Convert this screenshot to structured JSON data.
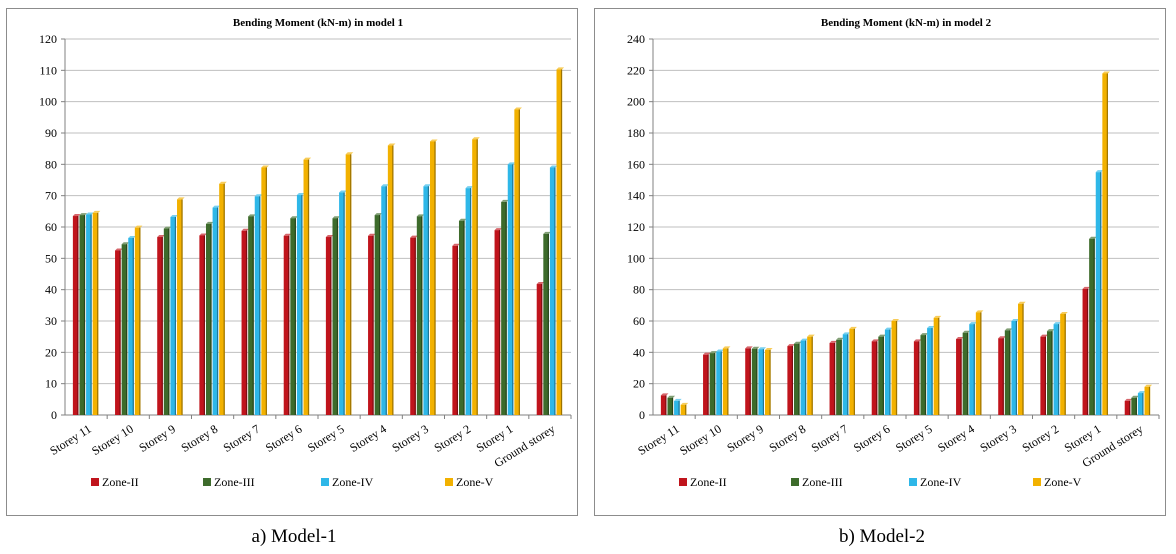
{
  "panels": [
    {
      "caption": "a) Model-1",
      "chart_data": {
        "type": "bar",
        "title": "Bending Moment (kN-m) in model 1",
        "categories": [
          "Storey 11",
          "Storey 10",
          "Storey 9",
          "Storey 8",
          "Storey 7",
          "Storey 6",
          "Storey 5",
          "Storey 4",
          "Storey 3",
          "Storey 2",
          "Storey 1",
          "Ground storey"
        ],
        "ylim": [
          0,
          120
        ],
        "yticks": [
          0,
          10,
          20,
          30,
          40,
          50,
          60,
          70,
          80,
          90,
          100,
          110,
          120
        ],
        "grid": true,
        "legend_position": "bottom",
        "series": [
          {
            "name": "Zone-II",
            "color": "#c0141c",
            "values": [
              63.5,
              52.5,
              56.8,
              57.3,
              58.8,
              57.2,
              56.8,
              57.2,
              56.6,
              54.0,
              59.0,
              41.8
            ]
          },
          {
            "name": "Zone-III",
            "color": "#3d6b2b",
            "values": [
              63.8,
              54.5,
              59.5,
              61.0,
              63.4,
              62.8,
              62.8,
              63.8,
              63.4,
              62.0,
              68.0,
              57.8
            ]
          },
          {
            "name": "Zone-IV",
            "color": "#2eb7e8",
            "values": [
              64.0,
              56.5,
              63.2,
              66.2,
              69.8,
              70.2,
              71.0,
              73.0,
              73.0,
              72.4,
              80.0,
              79.0
            ]
          },
          {
            "name": "Zone-V",
            "color": "#f2b100",
            "values": [
              64.5,
              59.8,
              68.8,
              73.8,
              79.0,
              81.5,
              83.2,
              86.0,
              87.3,
              88.0,
              97.5,
              110.3
            ]
          }
        ]
      }
    },
    {
      "caption": "b) Model-2",
      "chart_data": {
        "type": "bar",
        "title": "Bending Moment (kN-m) in model 2",
        "categories": [
          "Storey 11",
          "Storey 10",
          "Storey 9",
          "Storey 8",
          "Storey 7",
          "Storey 6",
          "Storey 5",
          "Storey 4",
          "Storey 3",
          "Storey 2",
          "Storey 1",
          "Ground storey"
        ],
        "ylim": [
          0,
          240
        ],
        "yticks": [
          0,
          20,
          40,
          60,
          80,
          100,
          120,
          140,
          160,
          180,
          200,
          220,
          240
        ],
        "grid": true,
        "legend_position": "bottom",
        "series": [
          {
            "name": "Zone-II",
            "color": "#c0141c",
            "values": [
              12.5,
              38.5,
              42.5,
              44.0,
              46.0,
              47.0,
              47.0,
              48.5,
              49.0,
              50.0,
              80.5,
              9.0
            ]
          },
          {
            "name": "Zone-III",
            "color": "#3d6b2b",
            "values": [
              11.0,
              39.5,
              42.3,
              45.5,
              48.0,
              50.0,
              51.0,
              52.5,
              54.0,
              53.5,
              112.5,
              11.0
            ]
          },
          {
            "name": "Zone-IV",
            "color": "#2eb7e8",
            "values": [
              9.0,
              40.5,
              42.0,
              47.5,
              51.5,
              54.5,
              55.5,
              58.0,
              60.0,
              58.0,
              155.0,
              14.0
            ]
          },
          {
            "name": "Zone-V",
            "color": "#f2b100",
            "values": [
              6.5,
              42.5,
              41.5,
              50.0,
              55.0,
              60.0,
              62.0,
              65.5,
              71.0,
              64.5,
              218.0,
              18.0
            ]
          }
        ]
      }
    }
  ]
}
